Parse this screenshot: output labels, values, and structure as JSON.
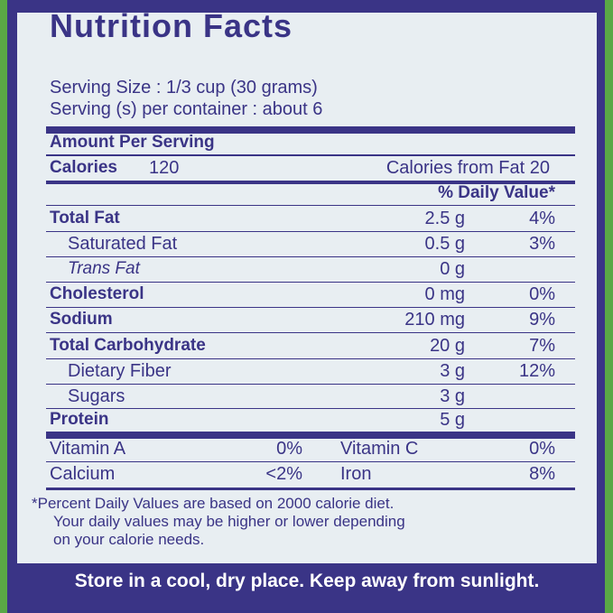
{
  "title": "Nutrition Facts",
  "serving_size": "Serving Size : 1/3 cup (30 grams)",
  "servings_per_container": "Serving (s) per container : about 6",
  "amount_per_serving": "Amount Per Serving",
  "calories_label": "Calories",
  "calories_value": "120",
  "calories_fat": "Calories from Fat 20",
  "daily_value_header": "% Daily Value*",
  "nutrients": [
    {
      "label": "Total Fat",
      "amount": "2.5 g",
      "dv": "4%"
    },
    {
      "label": "Saturated Fat",
      "amount": "0.5 g",
      "dv": "3%"
    },
    {
      "label": "Trans Fat",
      "amount": "0 g",
      "dv": ""
    },
    {
      "label": "Cholesterol",
      "amount": "0 mg",
      "dv": "0%"
    },
    {
      "label": "Sodium",
      "amount": "210 mg",
      "dv": "9%"
    },
    {
      "label": "Total Carbohydrate",
      "amount": "20 g",
      "dv": "7%"
    },
    {
      "label": "Dietary Fiber",
      "amount": "3 g",
      "dv": "12%"
    },
    {
      "label": "Sugars",
      "amount": "3 g",
      "dv": ""
    },
    {
      "label": "Protein",
      "amount": "5 g",
      "dv": ""
    }
  ],
  "vitamins": [
    {
      "label": "Vitamin A",
      "value": "0%",
      "label2": "Vitamin C",
      "value2": "0%"
    },
    {
      "label": "Calcium",
      "value": "<2%",
      "label2": "Iron",
      "value2": "8%"
    }
  ],
  "footnote": [
    "*Percent Daily Values are based on 2000 calorie diet.",
    "Your daily values may be higher or lower depending",
    "on your calorie needs."
  ],
  "storage": "Store in a cool, dry place. Keep away from sunlight."
}
